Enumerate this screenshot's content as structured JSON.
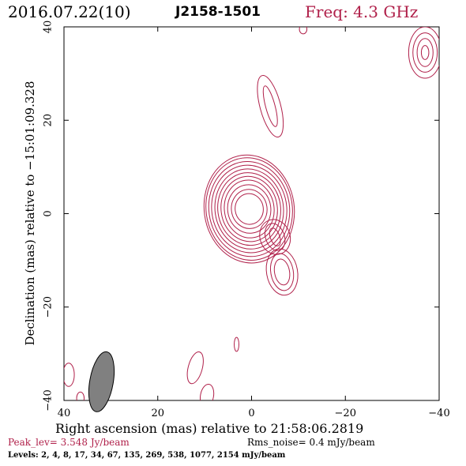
{
  "header": {
    "date": "2016.07.22(10)",
    "source": "J2158-1501",
    "freq": "Freq: 4.3 GHz"
  },
  "footer": {
    "peak": "Peak_lev=  3.548 Jy/beam",
    "rms": "Rms_noise=  0.4 mJy/beam",
    "levels": "Levels:   2,   4,   8,  17,  34,  67, 135, 269, 538, 1077, 2154 mJy/beam"
  },
  "colors": {
    "contour": "#b0204a",
    "beam_fill": "#808080",
    "axes": "#000000"
  },
  "chart_data": {
    "type": "contour",
    "title": "2016.07.22(10) J2158-1501",
    "xlabel": "Right ascension (mas) relative to 21:58:06.2819",
    "ylabel": "Declination (mas) relative to −15:01:09.328",
    "xlim": [
      40,
      -40
    ],
    "ylim": [
      -40,
      40
    ],
    "x_ticks": [
      40,
      20,
      0,
      -20,
      -40
    ],
    "y_ticks": [
      -40,
      -20,
      0,
      20,
      40
    ],
    "x_tick_labels": [
      "40",
      "20",
      "0",
      "−20",
      "−40"
    ],
    "y_tick_labels": [
      "−40",
      "−20",
      "0",
      "20",
      "40"
    ],
    "peak_jy_per_beam": 3.548,
    "rms_mjy_per_beam": 0.4,
    "levels_mjy_per_beam": [
      2,
      4,
      8,
      17,
      34,
      67,
      135,
      269,
      538,
      1077,
      2154
    ],
    "beam": {
      "x": 32,
      "y": -36,
      "major": 6.5,
      "minor": 2.5,
      "pa_deg": -10
    },
    "components": [
      {
        "name": "core",
        "x": 0.5,
        "y": 1,
        "rx": [
          3.0,
          3.8,
          4.6,
          5.3,
          6.0,
          6.7,
          7.3,
          8.0,
          8.6,
          9.2,
          9.6
        ],
        "ry": [
          3.3,
          4.2,
          5.2,
          6.2,
          7.0,
          7.8,
          8.6,
          9.4,
          10.2,
          11.0,
          11.6
        ],
        "angle": -8
      },
      {
        "name": "jet-knot-1",
        "x": -5,
        "y": -5,
        "rx": [
          1.0,
          2.0,
          3.2
        ],
        "ry": [
          2.0,
          3.0,
          3.8
        ],
        "angle": -20
      },
      {
        "name": "jet-knot-2",
        "x": -6.5,
        "y": -12.5,
        "rx": [
          1.6,
          2.4,
          3.3
        ],
        "ry": [
          2.8,
          4.0,
          5.0
        ],
        "angle": -10
      },
      {
        "name": "north-feature",
        "x": -4,
        "y": 23,
        "rx": [
          1.0,
          2.2
        ],
        "ry": [
          4.5,
          6.8
        ],
        "angle": -15
      },
      {
        "name": "ne-edge-feature",
        "x": -37,
        "y": 34.5,
        "rx": [
          0.8,
          1.7,
          2.6,
          3.5
        ],
        "ry": [
          1.5,
          3.0,
          4.2,
          5.5
        ],
        "angle": 0
      },
      {
        "name": "top-edge-blob",
        "x": -11,
        "y": 39.5,
        "rx": [
          0.8
        ],
        "ry": [
          1.0
        ],
        "angle": 0
      },
      {
        "name": "south-blob-1",
        "x": 12,
        "y": -33,
        "rx": [
          1.5
        ],
        "ry": [
          3.5
        ],
        "angle": 15
      },
      {
        "name": "south-blob-2",
        "x": 3.2,
        "y": -28,
        "rx": [
          0.5
        ],
        "ry": [
          1.5
        ],
        "angle": 0
      },
      {
        "name": "south-blob-3",
        "x": 9.5,
        "y": -39,
        "rx": [
          1.4
        ],
        "ry": [
          2.5
        ],
        "angle": 10
      },
      {
        "name": "sw-edge-blob",
        "x": 39,
        "y": -34.5,
        "rx": [
          1.2
        ],
        "ry": [
          2.5
        ],
        "angle": 0
      },
      {
        "name": "sw-edge-blob-2",
        "x": 36.5,
        "y": -39.5,
        "rx": [
          0.8
        ],
        "ry": [
          1.3
        ],
        "angle": 0
      }
    ]
  }
}
